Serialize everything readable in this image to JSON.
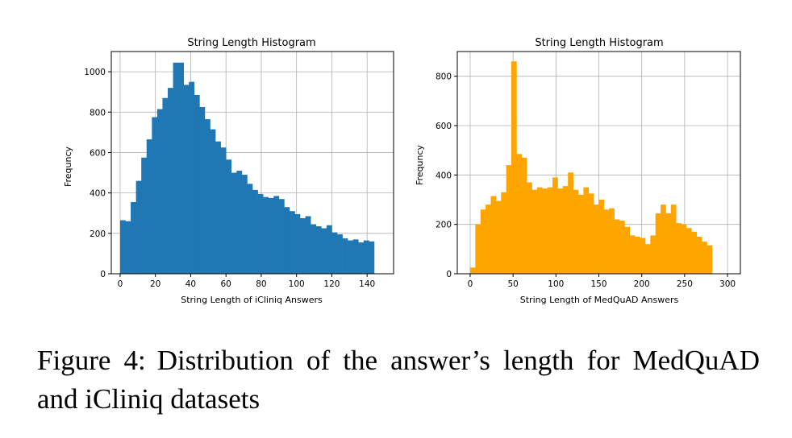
{
  "caption": {
    "label": "Figure 4:",
    "text": "Distribution of the answer’s length for MedQuAD and iCliniq datasets"
  },
  "chart_data": [
    {
      "type": "bar",
      "title": "String Length Histogram",
      "xlabel": "String Length of iCliniq Answers",
      "ylabel": "Frequncy",
      "color": "#1f77b4",
      "xlim": [
        -5,
        155
      ],
      "ylim": [
        0,
        1100
      ],
      "xticks": [
        0,
        20,
        40,
        60,
        80,
        100,
        120,
        140
      ],
      "yticks": [
        0,
        200,
        400,
        600,
        800,
        1000
      ],
      "grid": true,
      "bins": {
        "start": 0,
        "width": 3
      },
      "values": [
        265,
        260,
        355,
        460,
        575,
        665,
        775,
        815,
        870,
        920,
        1045,
        1045,
        935,
        950,
        885,
        825,
        765,
        715,
        655,
        625,
        565,
        500,
        510,
        490,
        445,
        415,
        395,
        380,
        375,
        385,
        370,
        330,
        310,
        295,
        275,
        285,
        245,
        235,
        225,
        240,
        205,
        195,
        175,
        165,
        170,
        155,
        165,
        160
      ]
    },
    {
      "type": "bar",
      "title": "String Length Histogram",
      "xlabel": "String Length of MedQuAD Answers",
      "ylabel": "Frequncy",
      "color": "#ffa500",
      "xlim": [
        -15,
        315
      ],
      "ylim": [
        0,
        900
      ],
      "xticks": [
        0,
        50,
        100,
        150,
        200,
        250,
        300
      ],
      "yticks": [
        0,
        200,
        400,
        600,
        800
      ],
      "grid": true,
      "bins": {
        "start": 0,
        "width": 6
      },
      "values": [
        25,
        200,
        260,
        280,
        315,
        295,
        330,
        440,
        860,
        485,
        470,
        370,
        340,
        350,
        345,
        350,
        390,
        345,
        355,
        410,
        340,
        320,
        350,
        325,
        280,
        300,
        260,
        265,
        220,
        215,
        190,
        155,
        150,
        145,
        120,
        155,
        245,
        280,
        245,
        280,
        205,
        200,
        185,
        170,
        150,
        130,
        115
      ]
    }
  ]
}
